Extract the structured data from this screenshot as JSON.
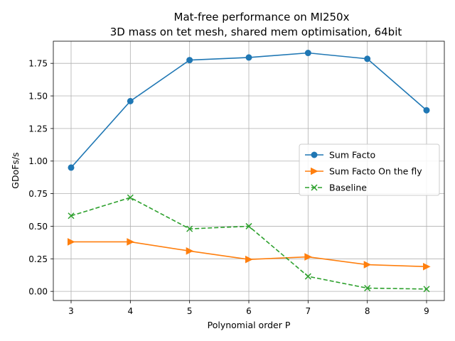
{
  "chart_data": {
    "type": "line",
    "title": "Mat-free performance on MI250x",
    "subtitle": "3D mass on tet mesh, shared mem optimisation, 64bit",
    "xlabel": "Polynomial order P",
    "ylabel": "GDoFs/s",
    "x": [
      3,
      4,
      5,
      6,
      7,
      8,
      9
    ],
    "xlim": [
      2.7,
      9.3
    ],
    "ylim": [
      -0.07,
      1.92
    ],
    "xticks": [
      "3",
      "4",
      "5",
      "6",
      "7",
      "8",
      "9"
    ],
    "yticks": [
      "0.00",
      "0.25",
      "0.50",
      "0.75",
      "1.00",
      "1.25",
      "1.50",
      "1.75"
    ],
    "ytick_values": [
      0,
      0.25,
      0.5,
      0.75,
      1.0,
      1.25,
      1.5,
      1.75
    ],
    "grid": true,
    "legend_position": "center-right",
    "series": [
      {
        "name": "Sum Facto",
        "values": [
          0.95,
          1.46,
          1.775,
          1.795,
          1.83,
          1.785,
          1.39
        ],
        "color": "#1f77b4",
        "marker": "circle",
        "linestyle": "solid"
      },
      {
        "name": "Sum Facto On the fly",
        "values": [
          0.38,
          0.38,
          0.31,
          0.245,
          0.265,
          0.205,
          0.19
        ],
        "color": "#ff7f0e",
        "marker": "triangle-right",
        "linestyle": "solid"
      },
      {
        "name": "Baseline",
        "values": [
          0.58,
          0.72,
          0.48,
          0.5,
          0.115,
          0.025,
          0.018
        ],
        "color": "#2ca02c",
        "marker": "x",
        "linestyle": "dashed"
      }
    ]
  }
}
